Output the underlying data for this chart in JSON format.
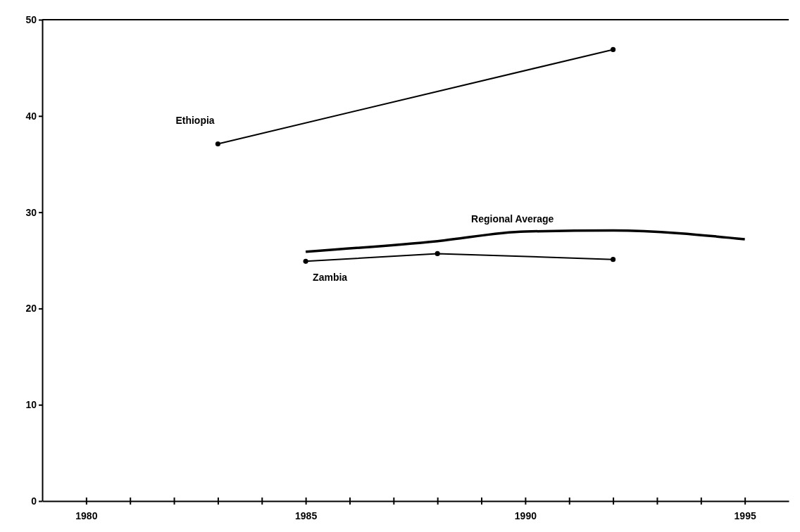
{
  "chart_data": {
    "type": "line",
    "grid": false,
    "xlim": [
      1979,
      1996
    ],
    "ylim": [
      0,
      50
    ],
    "xticks": [
      1980,
      {
        "value": 1981,
        "label": null
      },
      {
        "value": 1982,
        "label": null
      },
      {
        "value": 1983,
        "label": null
      },
      {
        "value": 1984,
        "label": null
      },
      1985,
      {
        "value": 1986,
        "label": null
      },
      {
        "value": 1987,
        "label": null
      },
      {
        "value": 1988,
        "label": null
      },
      {
        "value": 1989,
        "label": null
      },
      1990,
      {
        "value": 1991,
        "label": null
      },
      {
        "value": 1992,
        "label": null
      },
      {
        "value": 1993,
        "label": null
      },
      {
        "value": 1994,
        "label": null
      },
      1995
    ],
    "yticks": [
      0,
      10,
      20,
      30,
      40,
      50
    ],
    "series": [
      {
        "name": "Ethiopia",
        "color": "#000000",
        "marker": "circle",
        "x": [
          1983,
          1992
        ],
        "values": [
          37.1,
          46.9
        ]
      },
      {
        "name": "Regional Average",
        "color": "#000000",
        "marker": "none",
        "x": [
          1985,
          1988,
          1990,
          1992,
          1995
        ],
        "values": [
          25.9,
          27.0,
          28.0,
          28.1,
          27.2
        ]
      },
      {
        "name": "Zambia",
        "color": "#000000",
        "marker": "circle",
        "x": [
          1985,
          1988,
          1992
        ],
        "values": [
          24.9,
          25.7,
          25.1
        ]
      }
    ]
  }
}
